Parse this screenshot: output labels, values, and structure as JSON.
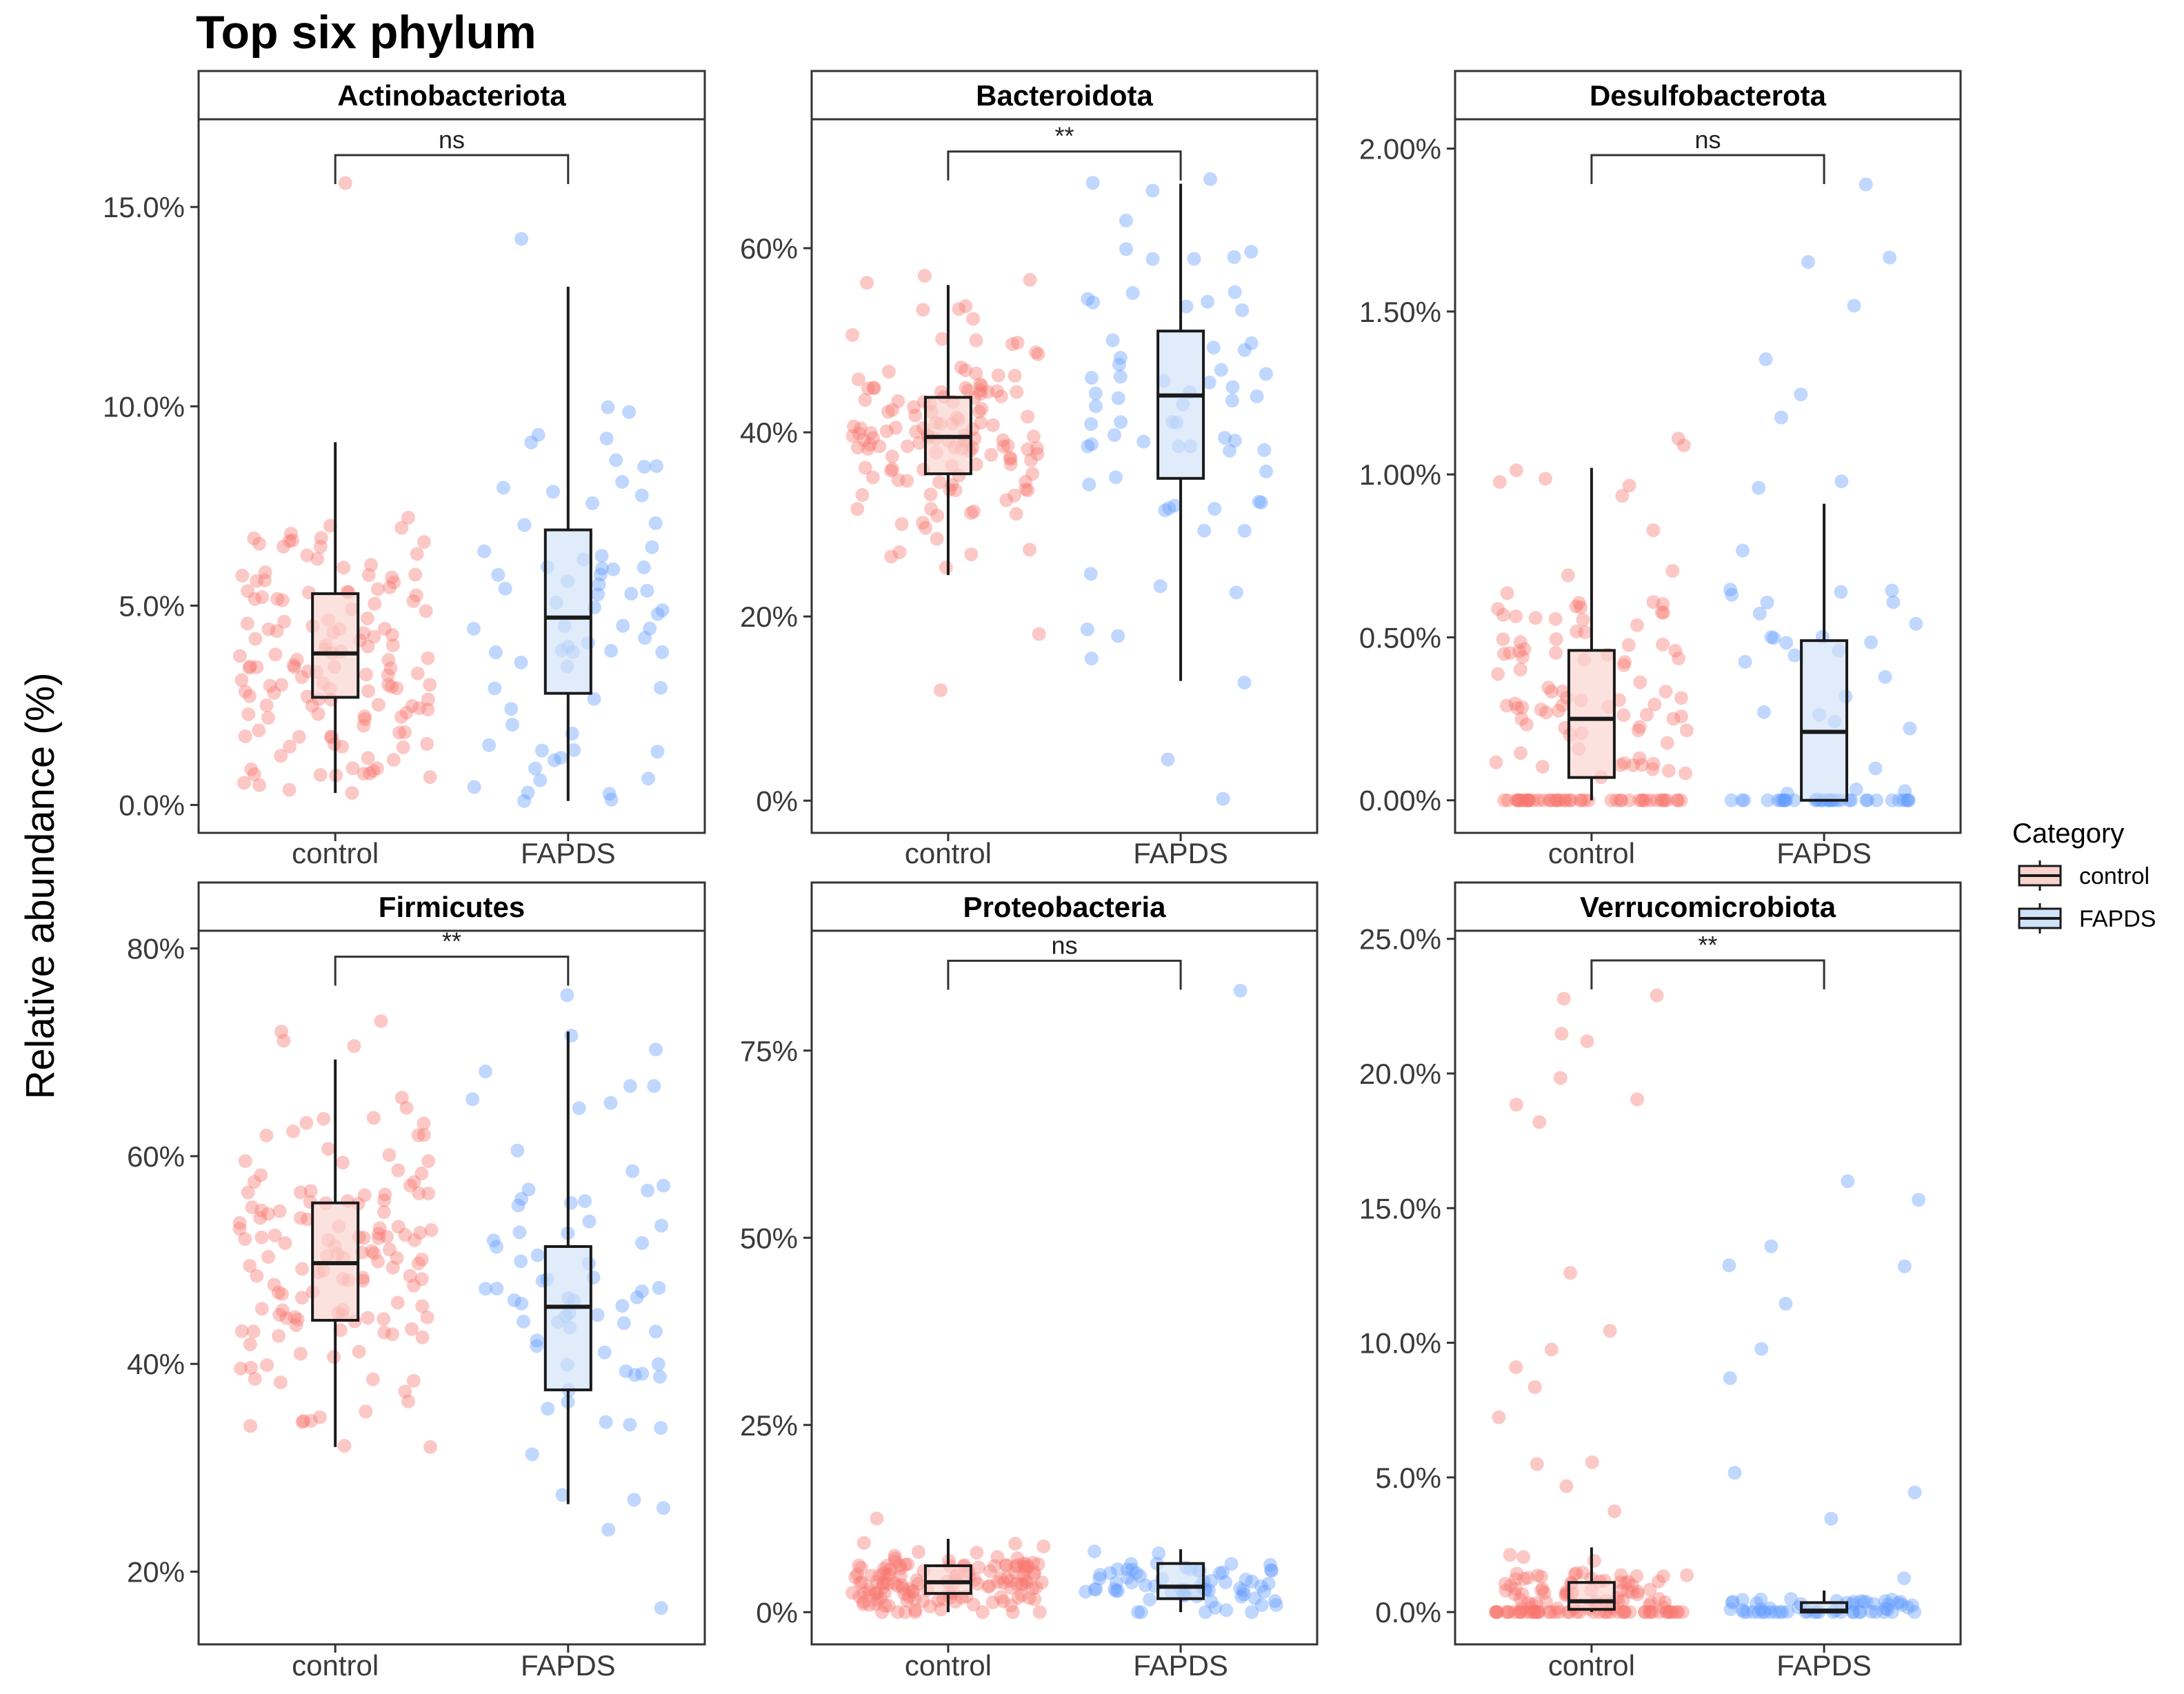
{
  "title": "Top six phylum",
  "y_axis_label": "Relative abundance (%)",
  "legend": {
    "title": "Category",
    "items": [
      {
        "label": "control",
        "color": "#F8766D",
        "fill": "#FAD3CE"
      },
      {
        "label": "FAPDS",
        "color": "#619CFF",
        "fill": "#CFE2F8"
      }
    ]
  },
  "chart_data": [
    {
      "type": "box",
      "panel": "Actinobacteriota",
      "categories": [
        "control",
        "FAPDS"
      ],
      "ylim": [
        -0.7,
        17.2
      ],
      "yticks": [
        0,
        5,
        10,
        15
      ],
      "ytick_labels": [
        "0.0%",
        "5.0%",
        "10.0%",
        "15.0%"
      ],
      "significance": "ns",
      "bracket_y": 16.3,
      "boxes": [
        {
          "q1": 2.7,
          "median": 3.8,
          "q3": 5.3,
          "whisker_low": 0.3,
          "whisker_high": 9.1
        },
        {
          "q1": 2.8,
          "median": 4.7,
          "q3": 6.9,
          "whisker_low": 0.1,
          "whisker_high": 13.0
        }
      ],
      "n_points": [
        140,
        70
      ],
      "point_ranges": [
        [
          0.3,
          15.6
        ],
        [
          0.1,
          14.2
        ]
      ]
    },
    {
      "type": "box",
      "panel": "Bacteroidota",
      "categories": [
        "control",
        "FAPDS"
      ],
      "ylim": [
        -3.5,
        74
      ],
      "yticks": [
        0,
        20,
        40,
        60
      ],
      "ytick_labels": [
        "0%",
        "20%",
        "40%",
        "60%"
      ],
      "significance": "**",
      "bracket_y": 70.5,
      "boxes": [
        {
          "q1": 35.5,
          "median": 39.5,
          "q3": 43.8,
          "whisker_low": 24.5,
          "whisker_high": 56.0
        },
        {
          "q1": 35.0,
          "median": 44.0,
          "q3": 51.0,
          "whisker_low": 13.0,
          "whisker_high": 67.0
        }
      ],
      "n_points": [
        140,
        70
      ],
      "point_ranges": [
        [
          12.0,
          57.0
        ],
        [
          0.2,
          67.5
        ]
      ]
    },
    {
      "type": "box",
      "panel": "Desulfobacterota",
      "categories": [
        "control",
        "FAPDS"
      ],
      "ylim": [
        -0.1,
        2.09
      ],
      "yticks": [
        0,
        0.5,
        1.0,
        1.5,
        2.0
      ],
      "ytick_labels": [
        "0.00%",
        "0.50%",
        "1.00%",
        "1.50%",
        "2.00%"
      ],
      "significance": "ns",
      "bracket_y": 1.98,
      "boxes": [
        {
          "q1": 0.07,
          "median": 0.25,
          "q3": 0.46,
          "whisker_low": 0.0,
          "whisker_high": 1.02
        },
        {
          "q1": 0.0,
          "median": 0.21,
          "q3": 0.49,
          "whisker_low": 0.0,
          "whisker_high": 0.91
        }
      ],
      "n_points": [
        140,
        70
      ],
      "point_ranges": [
        [
          0.0,
          1.11
        ],
        [
          0.0,
          1.89
        ]
      ]
    },
    {
      "type": "box",
      "panel": "Firmicutes",
      "categories": [
        "control",
        "FAPDS"
      ],
      "ylim": [
        13,
        81.7
      ],
      "yticks": [
        20,
        40,
        60,
        80
      ],
      "ytick_labels": [
        "20%",
        "40%",
        "60%",
        "80%"
      ],
      "significance": "**",
      "bracket_y": 79.2,
      "boxes": [
        {
          "q1": 44.2,
          "median": 49.7,
          "q3": 55.5,
          "whisker_low": 32.0,
          "whisker_high": 69.3
        },
        {
          "q1": 37.5,
          "median": 45.5,
          "q3": 51.3,
          "whisker_low": 26.5,
          "whisker_high": 72.0
        }
      ],
      "n_points": [
        140,
        70
      ],
      "point_ranges": [
        [
          32.0,
          73.0
        ],
        [
          16.5,
          75.5
        ]
      ]
    },
    {
      "type": "box",
      "panel": "Proteobacteria",
      "categories": [
        "control",
        "FAPDS"
      ],
      "ylim": [
        -4.3,
        91
      ],
      "yticks": [
        0,
        25,
        50,
        75
      ],
      "ytick_labels": [
        "0%",
        "25%",
        "50%",
        "75%"
      ],
      "significance": "ns",
      "bracket_y": 87,
      "boxes": [
        {
          "q1": 2.5,
          "median": 4.0,
          "q3": 6.2,
          "whisker_low": 0.0,
          "whisker_high": 9.8
        },
        {
          "q1": 1.8,
          "median": 3.4,
          "q3": 6.5,
          "whisker_low": 0.0,
          "whisker_high": 8.4
        }
      ],
      "n_points": [
        140,
        70
      ],
      "point_ranges": [
        [
          0.0,
          12.5
        ],
        [
          0.0,
          83.0
        ]
      ]
    },
    {
      "type": "box",
      "panel": "Verrucomicrobiota",
      "categories": [
        "control",
        "FAPDS"
      ],
      "ylim": [
        -1.2,
        25.3
      ],
      "yticks": [
        0,
        5,
        10,
        15,
        20,
        25
      ],
      "ytick_labels": [
        "0.0%",
        "5.0%",
        "10.0%",
        "15.0%",
        "20.0%",
        "25.0%"
      ],
      "significance": "**",
      "bracket_y": 24.2,
      "boxes": [
        {
          "q1": 0.1,
          "median": 0.4,
          "q3": 1.1,
          "whisker_low": 0.0,
          "whisker_high": 2.4
        },
        {
          "q1": 0.0,
          "median": 0.05,
          "q3": 0.35,
          "whisker_low": 0.0,
          "whisker_high": 0.8
        }
      ],
      "n_points": [
        140,
        70
      ],
      "point_ranges": [
        [
          0.0,
          22.9
        ],
        [
          0.0,
          16.0
        ]
      ]
    }
  ]
}
